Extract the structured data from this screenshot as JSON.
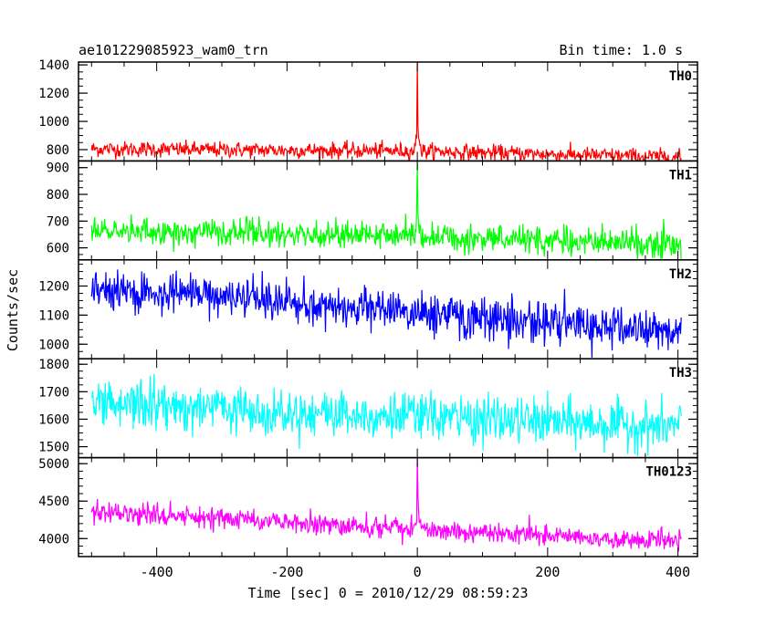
{
  "header": {
    "title": "ae101229085923_wam0_trn",
    "bin_time": "Bin time: 1.0 s"
  },
  "chart_data": {
    "type": "line",
    "xlabel": "Time [sec] 0 = 2010/12/29 08:59:23",
    "ylabel": "Counts/sec",
    "xlim": [
      -520,
      430
    ],
    "xticks": [
      "-400",
      "-200",
      "0",
      "200",
      "400"
    ],
    "xtick_values": [
      -400,
      -200,
      0,
      200,
      400
    ],
    "x_range": [
      -500,
      405
    ],
    "bin_time_s": 1.0,
    "panels": [
      {
        "name": "TH0",
        "color": "#ff0000",
        "ylim": [
          720,
          1420
        ],
        "yticks": [
          "800",
          "1000",
          "1200",
          "1400"
        ],
        "ytick_values": [
          800,
          1000,
          1200,
          1400
        ],
        "baseline": [
          [
            -500,
            805
          ],
          [
            0,
            790
          ],
          [
            405,
            745
          ]
        ],
        "noise": 28,
        "burst": {
          "peak": 1420,
          "hump": 990
        }
      },
      {
        "name": "TH1",
        "color": "#00ff00",
        "ylim": [
          555,
          925
        ],
        "yticks": [
          "600",
          "700",
          "800",
          "900"
        ],
        "ytick_values": [
          600,
          700,
          800,
          900
        ],
        "baseline": [
          [
            -500,
            665
          ],
          [
            0,
            645
          ],
          [
            405,
            610
          ]
        ],
        "noise": 25,
        "burst": {
          "peak": 920,
          "hump": 720
        }
      },
      {
        "name": "TH2",
        "color": "#0000ff",
        "ylim": [
          950,
          1290
        ],
        "yticks": [
          "1000",
          "1100",
          "1200"
        ],
        "ytick_values": [
          1000,
          1100,
          1200
        ],
        "baseline": [
          [
            -500,
            1190
          ],
          [
            0,
            1110
          ],
          [
            405,
            1040
          ]
        ],
        "noise": 35,
        "burst": null
      },
      {
        "name": "TH3",
        "color": "#00ffff",
        "ylim": [
          1460,
          1820
        ],
        "yticks": [
          "1500",
          "1600",
          "1700",
          "1800"
        ],
        "ytick_values": [
          1500,
          1600,
          1700,
          1800
        ],
        "baseline": [
          [
            -500,
            1660
          ],
          [
            0,
            1610
          ],
          [
            405,
            1570
          ]
        ],
        "noise": 42,
        "burst": null
      },
      {
        "name": "TH0123",
        "color": "#ff00ff",
        "ylim": [
          3760,
          5080
        ],
        "yticks": [
          "4000",
          "4500",
          "5000"
        ],
        "ytick_values": [
          4000,
          4500,
          5000
        ],
        "baseline": [
          [
            -500,
            4350
          ],
          [
            0,
            4130
          ],
          [
            405,
            3950
          ]
        ],
        "noise": 70,
        "burst": {
          "peak": 5080,
          "hump": 4450
        }
      }
    ]
  }
}
